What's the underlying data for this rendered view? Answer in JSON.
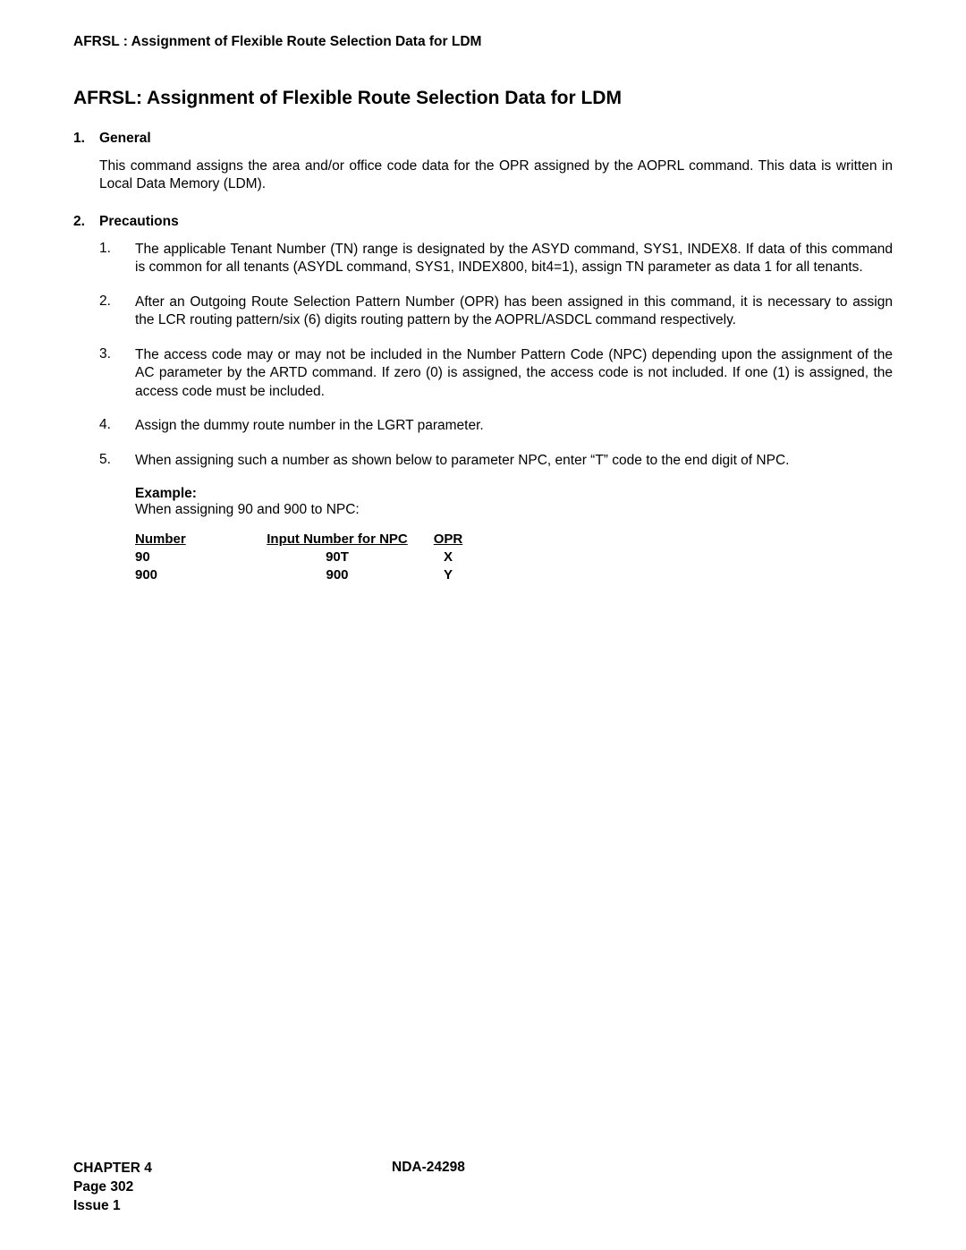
{
  "header": "AFRSL : Assignment of Flexible Route Selection Data for LDM",
  "title": "AFRSL: Assignment of Flexible Route Selection Data for LDM",
  "sections": {
    "general": {
      "num": "1.",
      "label": "General",
      "text": "This command assigns the area and/or office code data for the OPR assigned by the AOPRL command. This data is written in Local Data Memory (LDM)."
    },
    "precautions": {
      "num": "2.",
      "label": "Precautions",
      "items": [
        {
          "num": "1.",
          "text": "The applicable Tenant Number (TN) range is designated by the ASYD command, SYS1, INDEX8. If data of this command is common for all tenants (ASYDL command, SYS1, INDEX800, bit4=1), assign TN parameter as data 1 for all tenants."
        },
        {
          "num": "2.",
          "text": "After an Outgoing Route Selection Pattern Number (OPR) has been assigned in this command, it is necessary to assign the LCR routing pattern/six (6) digits routing pattern by the AOPRL/ASDCL command respectively."
        },
        {
          "num": "3.",
          "text": "The access code may or may not be included in the Number Pattern Code (NPC) depending upon the assignment of the AC parameter by the ARTD command. If zero (0) is assigned, the access code is not included. If one (1) is assigned, the access code must be included."
        },
        {
          "num": "4.",
          "text": "Assign the dummy route number in the LGRT parameter."
        },
        {
          "num": "5.",
          "text": "When assigning such a number as shown below to parameter NPC, enter “T” code to the end digit of NPC."
        }
      ]
    }
  },
  "example": {
    "label": "Example:",
    "desc": "When assigning 90 and 900 to NPC:",
    "table": {
      "columns": [
        "Number",
        "Input Number for NPC",
        "OPR"
      ],
      "rows": [
        [
          "90",
          "90T",
          "X"
        ],
        [
          "900",
          "900",
          "Y"
        ]
      ]
    }
  },
  "footer": {
    "chapter": "CHAPTER 4",
    "page": "Page 302",
    "issue": "Issue 1",
    "docnum": "NDA-24298"
  },
  "colors": {
    "text": "#000000",
    "background": "#ffffff"
  },
  "typography": {
    "body_fontsize": 15.5,
    "title_fontsize": 21,
    "font_family": "Arial"
  }
}
